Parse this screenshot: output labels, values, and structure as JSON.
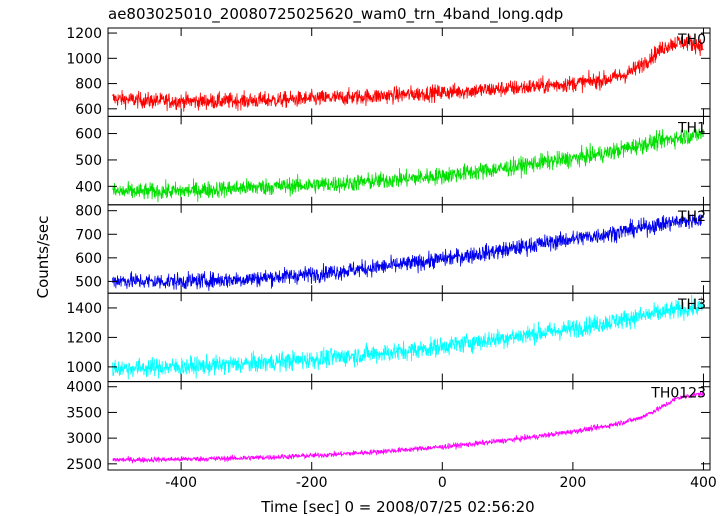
{
  "chart_data": {
    "type": "line",
    "title": "ae803025010_20080725025620_wam0_trn_4band_long.qdp",
    "xlabel": "Time [sec] 0 = 2008/07/25 02:56:20",
    "ylabel": "Counts/sec",
    "xlim": [
      -512,
      410
    ],
    "xticks": [
      -400,
      -200,
      0,
      200,
      400
    ],
    "grid": false,
    "panels": [
      {
        "name": "TH0",
        "color": "#ff0000",
        "ylim": [
          540,
          1240
        ],
        "yticks": [
          600,
          800,
          1000,
          1200
        ],
        "noise": 55,
        "x": [
          -505,
          -450,
          -400,
          -350,
          -300,
          -250,
          -200,
          -150,
          -100,
          -50,
          0,
          50,
          100,
          150,
          200,
          250,
          280,
          300,
          320,
          340,
          360,
          380,
          400
        ],
        "y": [
          680,
          665,
          660,
          660,
          665,
          670,
          680,
          690,
          700,
          715,
          730,
          745,
          760,
          780,
          800,
          830,
          870,
          930,
          1010,
          1090,
          1130,
          1120,
          1090
        ]
      },
      {
        "name": "TH1",
        "color": "#00e000",
        "ylim": [
          330,
          665
        ],
        "yticks": [
          400,
          500,
          600
        ],
        "noise": 28,
        "x": [
          -505,
          -450,
          -400,
          -350,
          -300,
          -250,
          -200,
          -150,
          -100,
          -50,
          0,
          50,
          100,
          150,
          200,
          250,
          300,
          350,
          400
        ],
        "y": [
          380,
          380,
          382,
          388,
          395,
          400,
          405,
          410,
          420,
          430,
          440,
          455,
          470,
          490,
          505,
          525,
          555,
          580,
          600
        ]
      },
      {
        "name": "TH2",
        "color": "#0000ee",
        "ylim": [
          450,
          825
        ],
        "yticks": [
          500,
          600,
          700,
          800
        ],
        "noise": 30,
        "x": [
          -505,
          -450,
          -400,
          -350,
          -300,
          -250,
          -200,
          -150,
          -100,
          -50,
          0,
          50,
          100,
          150,
          200,
          250,
          300,
          350,
          400
        ],
        "y": [
          505,
          500,
          500,
          505,
          510,
          520,
          530,
          545,
          560,
          575,
          595,
          615,
          635,
          660,
          680,
          700,
          725,
          750,
          765
        ]
      },
      {
        "name": "TH3",
        "color": "#00ffff",
        "ylim": [
          900,
          1500
        ],
        "yticks": [
          1000,
          1200,
          1400
        ],
        "noise": 55,
        "x": [
          -505,
          -450,
          -400,
          -350,
          -300,
          -250,
          -200,
          -150,
          -100,
          -50,
          0,
          50,
          100,
          150,
          200,
          250,
          300,
          350,
          400
        ],
        "y": [
          990,
          995,
          1000,
          1010,
          1020,
          1035,
          1050,
          1070,
          1090,
          1110,
          1140,
          1170,
          1200,
          1230,
          1260,
          1300,
          1340,
          1380,
          1410
        ]
      },
      {
        "name": "TH0123",
        "color": "#ff00ff",
        "ylim": [
          2380,
          4100
        ],
        "yticks": [
          2500,
          3000,
          3500,
          4000
        ],
        "noise": 45,
        "x": [
          -505,
          -450,
          -400,
          -350,
          -300,
          -250,
          -200,
          -150,
          -100,
          -50,
          0,
          50,
          100,
          150,
          200,
          250,
          300,
          330,
          360,
          400
        ],
        "y": [
          2580,
          2580,
          2590,
          2600,
          2615,
          2635,
          2660,
          2695,
          2735,
          2780,
          2830,
          2890,
          2960,
          3040,
          3130,
          3230,
          3380,
          3560,
          3780,
          3870
        ]
      }
    ]
  }
}
